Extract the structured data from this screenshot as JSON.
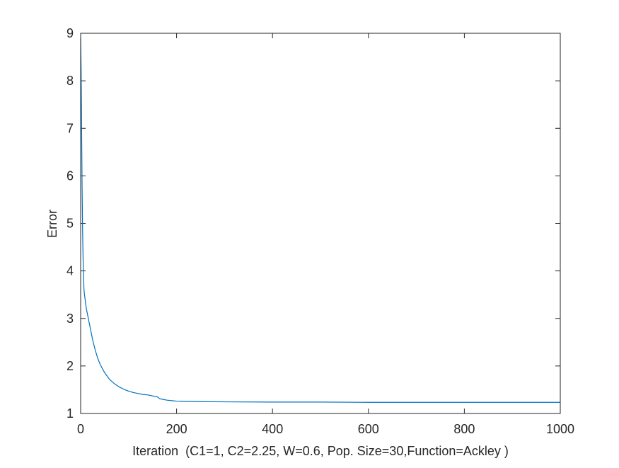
{
  "chart_data": {
    "type": "line",
    "title": "",
    "xlabel": "Iteration  (C1=1, C2=2.25, W=0.6, Pop. Size=30,Function=Ackley )",
    "ylabel": "Error",
    "xlim": [
      0,
      1000
    ],
    "ylim": [
      1,
      9
    ],
    "xticks": [
      0,
      200,
      400,
      600,
      800,
      1000
    ],
    "yticks": [
      1,
      2,
      3,
      4,
      5,
      6,
      7,
      8,
      9
    ],
    "xtick_labels": [
      "0",
      "200",
      "400",
      "600",
      "800",
      "1000"
    ],
    "ytick_labels": [
      "1",
      "2",
      "3",
      "4",
      "5",
      "6",
      "7",
      "8",
      "9"
    ],
    "grid": false,
    "box": true,
    "series": [
      {
        "color": "#0072BD",
        "x": [
          0,
          1,
          2,
          3,
          4,
          5,
          6,
          7,
          8,
          10,
          12,
          15,
          18,
          20,
          25,
          30,
          35,
          40,
          45,
          50,
          55,
          60,
          70,
          80,
          90,
          100,
          110,
          120,
          130,
          140,
          150,
          160,
          165,
          170,
          180,
          190,
          200,
          220,
          250,
          300,
          400,
          500,
          600,
          700,
          800,
          900,
          1000
        ],
        "y": [
          8.9,
          8.2,
          7.0,
          5.8,
          4.9,
          4.3,
          3.9,
          3.6,
          3.5,
          3.35,
          3.2,
          3.05,
          2.9,
          2.8,
          2.55,
          2.35,
          2.18,
          2.05,
          1.95,
          1.86,
          1.79,
          1.72,
          1.63,
          1.56,
          1.51,
          1.47,
          1.44,
          1.42,
          1.4,
          1.39,
          1.37,
          1.35,
          1.31,
          1.3,
          1.28,
          1.27,
          1.26,
          1.255,
          1.25,
          1.245,
          1.24,
          1.24,
          1.235,
          1.235,
          1.235,
          1.235,
          1.235
        ]
      }
    ]
  }
}
